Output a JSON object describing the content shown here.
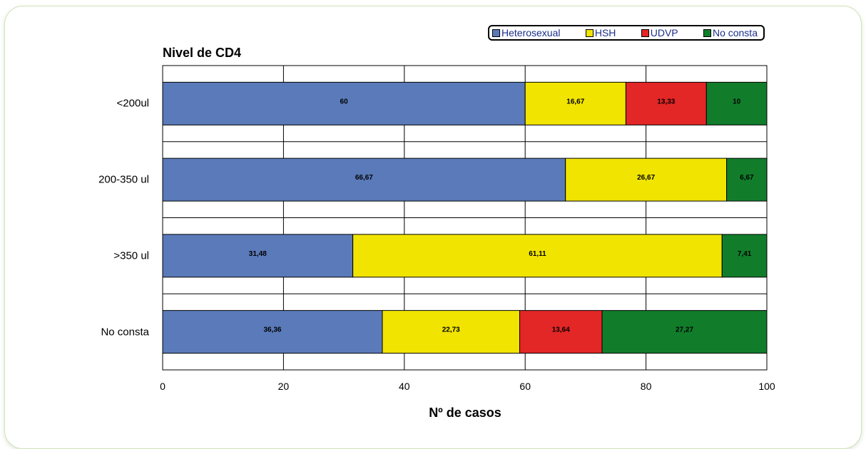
{
  "legend": [
    {
      "label": "Heterosexual",
      "color": "#5a7ab9"
    },
    {
      "label": "HSH",
      "color": "#f1e400"
    },
    {
      "label": "UDVP",
      "color": "#e32626"
    },
    {
      "label": "No consta",
      "color": "#117d2b"
    }
  ],
  "chart_data": {
    "type": "bar",
    "orientation": "horizontal",
    "stacked": true,
    "title": "Nivel de CD4",
    "xlabel": "Nº de casos",
    "ylabel": "",
    "xlim": [
      0,
      100
    ],
    "x_ticks": [
      "0",
      "20",
      "40",
      "60",
      "80",
      "100"
    ],
    "grid": true,
    "legend_position": "top-right",
    "categories": [
      "<200ul",
      "200-350 ul",
      ">350 ul",
      "No consta"
    ],
    "series": [
      {
        "name": "Heterosexual",
        "color": "#5a7ab9",
        "values": [
          60,
          66.67,
          31.48,
          36.36
        ],
        "labels": [
          "60",
          "66,67",
          "31,48",
          "36,36"
        ]
      },
      {
        "name": "HSH",
        "color": "#f1e400",
        "values": [
          16.67,
          26.67,
          61.11,
          22.73
        ],
        "labels": [
          "16,67",
          "26,67",
          "61,11",
          "22,73"
        ]
      },
      {
        "name": "UDVP",
        "color": "#e32626",
        "values": [
          13.33,
          0,
          0,
          13.64
        ],
        "labels": [
          "13,33",
          "",
          "",
          "13,64"
        ]
      },
      {
        "name": "No consta",
        "color": "#117d2b",
        "values": [
          10,
          6.67,
          7.41,
          27.27
        ],
        "labels": [
          "10",
          "6,67",
          "7,41",
          "27,27"
        ]
      }
    ]
  }
}
